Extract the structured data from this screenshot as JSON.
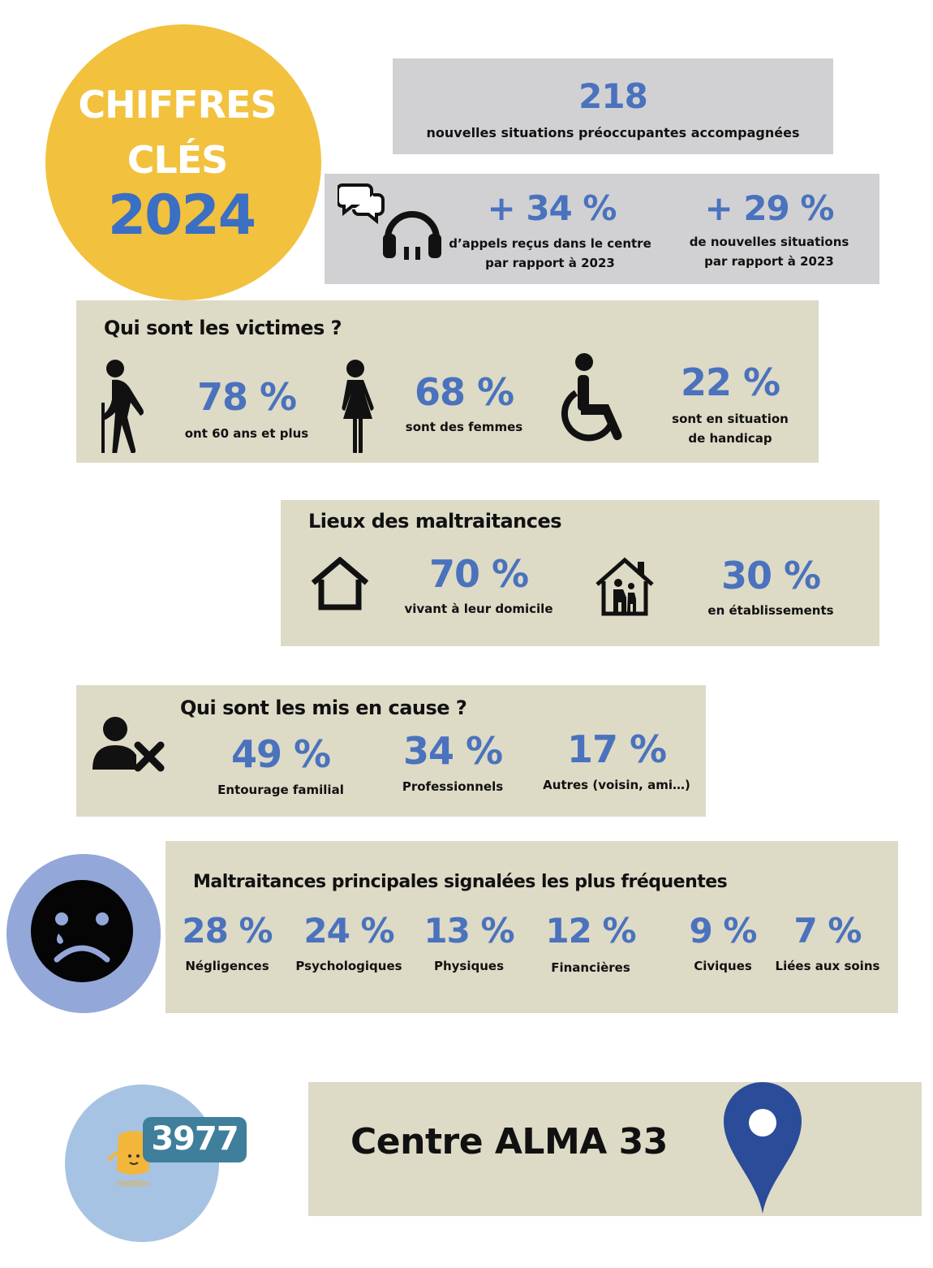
{
  "header": {
    "line1": "CHIFFRES",
    "line2": "CLÉS",
    "year": "2024"
  },
  "stats_top": {
    "count": "218",
    "count_label": "nouvelles situations préoccupantes accompagnées",
    "calls_pct": "+ 34 %",
    "calls_label_1": "d’appels reçus dans le centre",
    "calls_label_2": "par rapport à 2023",
    "situations_pct": "+ 29 %",
    "situations_label_1": "de nouvelles situations",
    "situations_label_2": "par rapport à 2023"
  },
  "victims": {
    "title": "Qui sont les victimes ?",
    "items": [
      {
        "value": "78 %",
        "label_1": "ont 60 ans et plus",
        "label_2": "",
        "icon": "elderly-person-icon"
      },
      {
        "value": "68 %",
        "label_1": "sont des femmes",
        "label_2": "",
        "icon": "woman-icon"
      },
      {
        "value": "22 %",
        "label_1": "sont en situation",
        "label_2": "de handicap",
        "icon": "wheelchair-icon"
      }
    ]
  },
  "places": {
    "title": "Lieux des maltraitances",
    "items": [
      {
        "value": "70 %",
        "label": "vivant à leur domicile",
        "icon": "house-icon"
      },
      {
        "value": "30 %",
        "label": "en établissements",
        "icon": "care-home-icon"
      }
    ]
  },
  "accused": {
    "title": "Qui sont les mis en cause ?",
    "items": [
      {
        "value": "49 %",
        "label": "Entourage familial"
      },
      {
        "value": "34 %",
        "label": "Professionnels"
      },
      {
        "value": "17 %",
        "label": "Autres (voisin, ami…)"
      }
    ]
  },
  "abuse": {
    "title": "Maltraitances principales signalées les plus fréquentes",
    "items": [
      {
        "value": "28 %",
        "label": "Négligences"
      },
      {
        "value": "24 %",
        "label": "Psychologiques"
      },
      {
        "value": "13 %",
        "label": "Physiques"
      },
      {
        "value": "12 %",
        "label": "Financières"
      },
      {
        "value": "9 %",
        "label": "Civiques"
      },
      {
        "value": "7 %",
        "label": "Liées aux soins"
      }
    ]
  },
  "footer": {
    "hotline": "3977",
    "center": "Centre ALMA 33"
  },
  "colors": {
    "accent_blue": "#4a72bd",
    "header_yellow": "#f2c13e",
    "box_beige": "#dddac6",
    "box_grey": "#d1d1d3",
    "sad_circle": "#94a7d9",
    "logo_circle": "#a7c3e3",
    "pin_blue": "#2b4c98"
  }
}
